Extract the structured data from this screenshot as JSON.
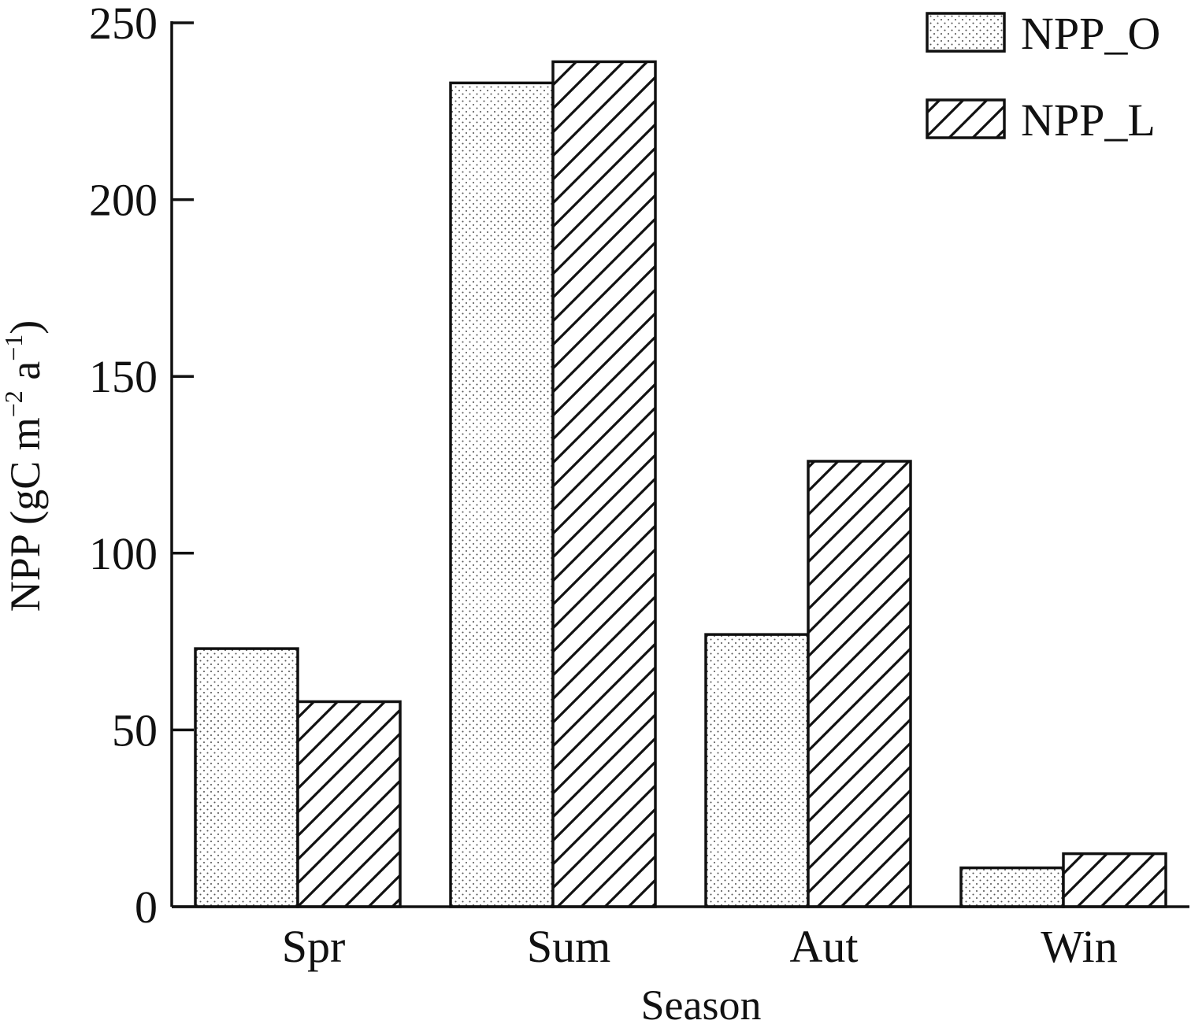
{
  "chart_data": {
    "type": "bar",
    "xlabel": "Season",
    "ylabel": {
      "prefix": "NPP (gC m",
      "exp1": "−2",
      "middle": " a",
      "exp2": "−1",
      "suffix": ")"
    },
    "categories": [
      "Spr",
      "Sum",
      "Aut",
      "Win"
    ],
    "series": [
      {
        "name": "NPP_O",
        "pattern": "dots",
        "values": [
          73,
          233,
          77,
          11
        ]
      },
      {
        "name": "NPP_L",
        "pattern": "hatch",
        "values": [
          58,
          239,
          126,
          15
        ]
      }
    ],
    "ylim": [
      0,
      250
    ],
    "yticks": [
      0,
      50,
      100,
      150,
      200,
      250
    ],
    "legend_position": "top-right",
    "grid": false,
    "colors": {
      "stroke": "#111111",
      "fill": "#ffffff"
    }
  }
}
